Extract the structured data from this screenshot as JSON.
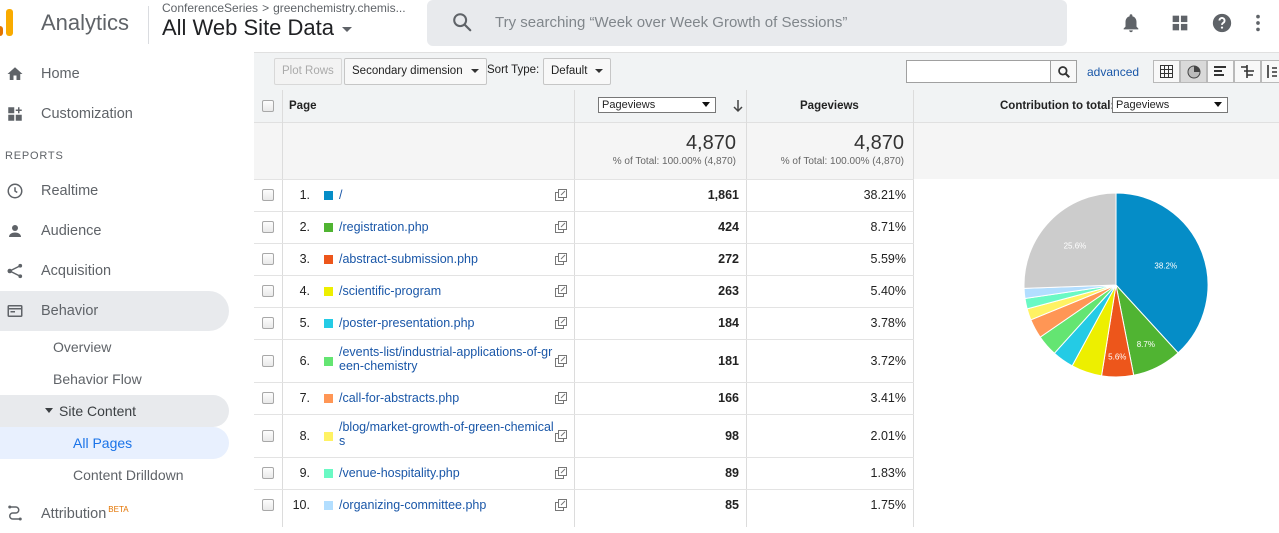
{
  "header": {
    "app_name": "Analytics",
    "breadcrumb_account": "ConferenceSeries",
    "breadcrumb_chevron": ">",
    "breadcrumb_property": "greenchemistry.chemis...",
    "view_name": "All Web Site Data",
    "search_placeholder": "Try searching “Week over Week Growth of Sessions”",
    "icons": [
      "bell-icon",
      "apps-grid-icon",
      "help-icon",
      "more-vert-icon"
    ],
    "logo_colors": [
      "#f9ab00",
      "#e37400",
      "#e37400"
    ]
  },
  "sidebar": {
    "home": "Home",
    "customization": "Customization",
    "reports_label": "REPORTS",
    "realtime": "Realtime",
    "audience": "Audience",
    "acquisition": "Acquisition",
    "behavior": "Behavior",
    "behavior_overview": "Overview",
    "behavior_flow": "Behavior Flow",
    "site_content": "Site Content",
    "all_pages": "All Pages",
    "content_drilldown": "Content Drilldown",
    "attribution": "Attribution",
    "attribution_badge": "BETA"
  },
  "toolbar": {
    "plot_rows": "Plot Rows",
    "secondary_dimension": "Secondary dimension",
    "sort_type_label": "Sort Type:",
    "sort_type_value": "Default",
    "filter_value": "",
    "advanced": "advanced"
  },
  "table": {
    "col_page": "Page",
    "metric_select": "Pageviews",
    "col_pageviews": "Pageviews",
    "contribution_label": "Contribution to total:",
    "contribution_select": "Pageviews",
    "totals": {
      "metric1_value": "4,870",
      "metric1_sub": "% of Total: 100.00% (4,870)",
      "metric2_value": "4,870",
      "metric2_sub": "% of Total: 100.00% (4,870)"
    },
    "rows": [
      {
        "index": "1.",
        "page": "/",
        "pageviews": "1,861",
        "percent": "38.21%",
        "color": "#058dc7"
      },
      {
        "index": "2.",
        "page": "/registration.php",
        "pageviews": "424",
        "percent": "8.71%",
        "color": "#50b432"
      },
      {
        "index": "3.",
        "page": "/abstract-submission.php",
        "pageviews": "272",
        "percent": "5.59%",
        "color": "#ed561b"
      },
      {
        "index": "4.",
        "page": "/scientific-program",
        "pageviews": "263",
        "percent": "5.40%",
        "color": "#edef00"
      },
      {
        "index": "5.",
        "page": "/poster-presentation.php",
        "pageviews": "184",
        "percent": "3.78%",
        "color": "#24cbe5"
      },
      {
        "index": "6.",
        "page": "/events-list/industrial-applications-of-green-chemistry",
        "pageviews": "181",
        "percent": "3.72%",
        "color": "#64e572"
      },
      {
        "index": "7.",
        "page": "/call-for-abstracts.php",
        "pageviews": "166",
        "percent": "3.41%",
        "color": "#ff9655"
      },
      {
        "index": "8.",
        "page": "/blog/market-growth-of-green-chemicals",
        "pageviews": "98",
        "percent": "2.01%",
        "color": "#fff263"
      },
      {
        "index": "9.",
        "page": "/venue-hospitality.php",
        "pageviews": "89",
        "percent": "1.83%",
        "color": "#6af9c4"
      },
      {
        "index": "10.",
        "page": "/organizing-committee.php",
        "pageviews": "85",
        "percent": "1.75%",
        "color": "#b2deff"
      }
    ]
  },
  "pie": {
    "other_color": "#cccccc",
    "other_percent": 25.6,
    "labels": {
      "first": "38.2%",
      "second": "8.7%",
      "third": "5.6%",
      "other": "25.6%"
    }
  }
}
